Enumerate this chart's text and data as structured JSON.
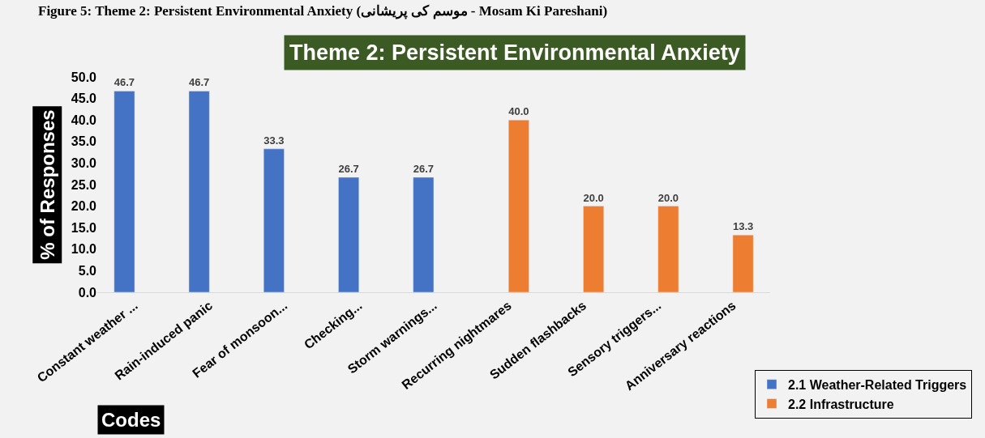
{
  "chart_data": {
    "type": "bar",
    "title": "Theme 2: Persistent Environmental Anxiety",
    "xlabel": "Codes",
    "ylabel": "% of Responses",
    "annotations": [
      "Figure 5: Theme 2: Persistent Environmental Anxiety (موسم کی پریشانی - Mosam Ki Pareshani)"
    ],
    "categories": [
      "Constant weather ...",
      "Rain-induced panic",
      "Fear of monsoon...",
      "Checking...",
      "Storm warnings...",
      "Recurring nightmares",
      "Sudden flashbacks",
      "Sensory triggers...",
      "Anniversary reactions"
    ],
    "series": [
      {
        "name": "2.1 Weather-Related Triggers",
        "color": "#4472c4",
        "values": [
          46.7,
          46.7,
          33.3,
          26.7,
          26.7,
          null,
          null,
          null,
          null
        ],
        "value_labels": [
          "46.7",
          "46.7",
          "33.3",
          "26.7",
          "26.7",
          null,
          null,
          null,
          null
        ]
      },
      {
        "name": "2.2 Infrastructure",
        "color": "#ed7d31",
        "values": [
          null,
          null,
          null,
          null,
          null,
          40.0,
          20.0,
          20.0,
          13.3
        ],
        "value_labels": [
          null,
          null,
          null,
          null,
          null,
          "40.0",
          "20.0",
          "20.0",
          "13.3"
        ]
      }
    ],
    "ylim": [
      0,
      50
    ],
    "yticks": [
      {
        "value": 0,
        "label": "0.0"
      },
      {
        "value": 5,
        "label": "5.0"
      },
      {
        "value": 10,
        "label": "10.0"
      },
      {
        "value": 15,
        "label": "15.0"
      },
      {
        "value": 20,
        "label": "20.0"
      },
      {
        "value": 25,
        "label": "25.0"
      },
      {
        "value": 30,
        "label": "30.0"
      },
      {
        "value": 35,
        "label": "35.0"
      },
      {
        "value": 40,
        "label": "40.0"
      },
      {
        "value": 45,
        "label": "45.0"
      },
      {
        "value": 50,
        "label": "50.0"
      }
    ],
    "grid": false,
    "legend": "bottom right"
  }
}
